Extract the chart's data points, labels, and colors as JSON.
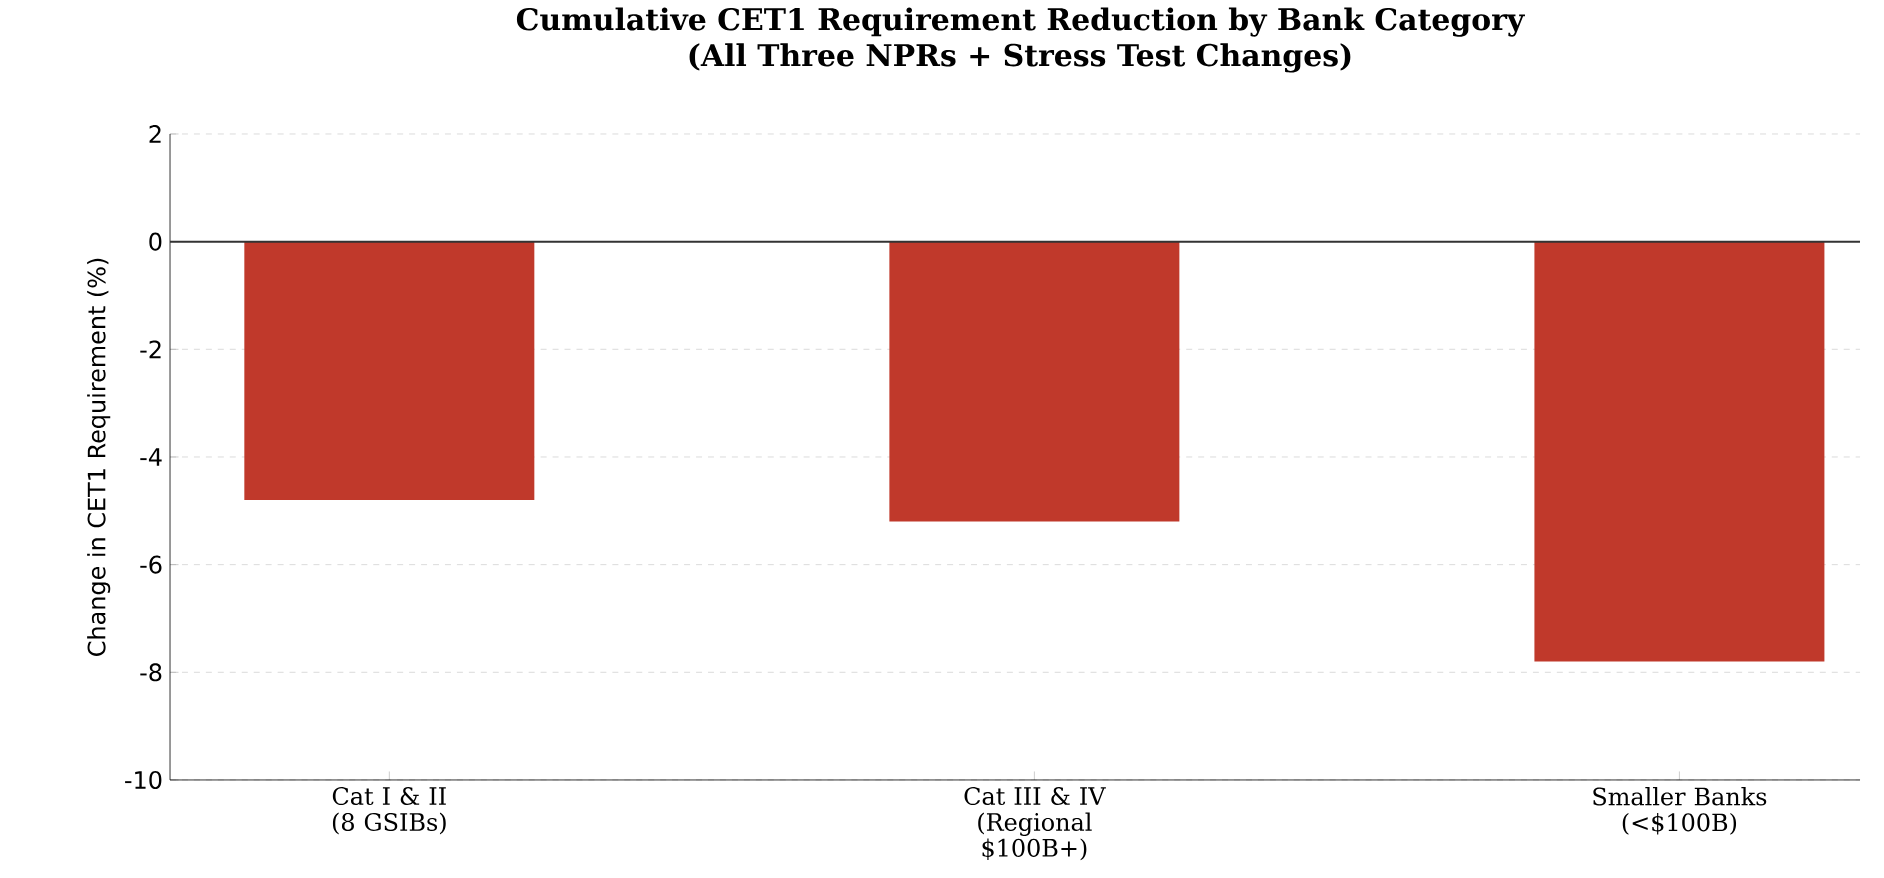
{
  "chart_data": {
    "type": "bar",
    "title": "Cumulative CET1 Requirement Reduction by Bank Category",
    "subtitle": "(All Three NPRs + Stress Test Changes)",
    "ylabel": "Change in CET1 Requirement (%)",
    "categories": [
      "Cat I & II (8 GSIBs)",
      "Cat III & IV (Regional $100B+)",
      "Smaller Banks (<$100B)"
    ],
    "values": [
      -4.8,
      -5.2,
      -7.8
    ],
    "color": "#c0392b",
    "ylim": [
      -10,
      2
    ],
    "yticks": [
      -10,
      -8,
      -6,
      -4,
      -2,
      0,
      2
    ],
    "grid": "y",
    "ref_lines": [
      {
        "axis": "y",
        "value": 0,
        "color": "#333333"
      }
    ]
  }
}
